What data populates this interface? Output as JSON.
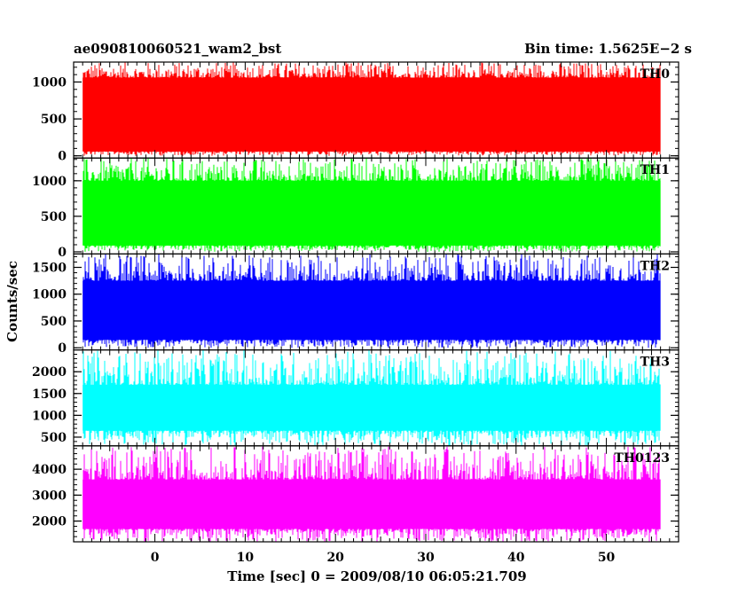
{
  "header": {
    "title": "ae090810060521_wam2_bst",
    "bin_time": "Bin time: 1.5625E−2 s"
  },
  "chart_data": {
    "type": "line",
    "xlabel": "Time [sec] 0 = 2009/08/10 06:05:21.709",
    "ylabel": "Counts/sec",
    "xlim": [
      -9,
      58
    ],
    "x_ticks": [
      0,
      10,
      20,
      30,
      40,
      50
    ],
    "data_x_range": [
      -8.0,
      56.0
    ],
    "bin_time_s": 0.015625,
    "grid": false,
    "panels": [
      {
        "name": "TH0",
        "color": "#ff0000",
        "ylim": [
          -30,
          1270
        ],
        "y_ticks": [
          0,
          500,
          1000
        ],
        "y_tick_labels": [
          "0",
          "500",
          "1000"
        ],
        "level_low": 60,
        "level_high": 1060,
        "spike_min": 0,
        "spike_max": 1270
      },
      {
        "name": "TH1",
        "color": "#00ff00",
        "ylim": [
          -30,
          1320
        ],
        "y_ticks": [
          0,
          500,
          1000
        ],
        "y_tick_labels": [
          "0",
          "500",
          "1000"
        ],
        "level_low": 90,
        "level_high": 1000,
        "spike_min": 0,
        "spike_max": 1320
      },
      {
        "name": "TH2",
        "color": "#0000ff",
        "ylim": [
          -40,
          1750
        ],
        "y_ticks": [
          0,
          500,
          1000,
          1500
        ],
        "y_tick_labels": [
          "0",
          "500",
          "1000",
          "1500"
        ],
        "level_low": 150,
        "level_high": 1250,
        "spike_min": 0,
        "spike_max": 1750
      },
      {
        "name": "TH3",
        "color": "#00ffff",
        "ylim": [
          300,
          2500
        ],
        "y_ticks": [
          500,
          1000,
          1500,
          2000
        ],
        "y_tick_labels": [
          "500",
          "1000",
          "1500",
          "2000"
        ],
        "level_low": 650,
        "level_high": 1700,
        "spike_min": 300,
        "spike_max": 2500
      },
      {
        "name": "TH0123",
        "color": "#ff00ff",
        "ylim": [
          1200,
          4900
        ],
        "y_ticks": [
          2000,
          3000,
          4000
        ],
        "y_tick_labels": [
          "2000",
          "3000",
          "4000"
        ],
        "level_low": 1700,
        "level_high": 3600,
        "spike_min": 1200,
        "spike_max": 4900
      }
    ]
  }
}
